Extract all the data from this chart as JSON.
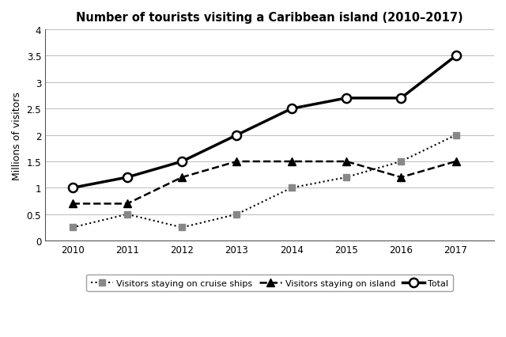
{
  "title": "Number of tourists visiting a Caribbean island (2010–2017)",
  "ylabel": "Millions of visitors",
  "years": [
    2010,
    2011,
    2012,
    2013,
    2014,
    2015,
    2016,
    2017
  ],
  "cruise_ships": [
    0.25,
    0.5,
    0.25,
    0.5,
    1.0,
    1.2,
    1.5,
    2.0
  ],
  "on_island": [
    0.7,
    0.7,
    1.2,
    1.5,
    1.5,
    1.5,
    1.2,
    1.5
  ],
  "total": [
    1.0,
    1.2,
    1.5,
    2.0,
    2.5,
    2.7,
    2.7,
    3.5
  ],
  "ylim": [
    0,
    4
  ],
  "yticks": [
    0,
    0.5,
    1.0,
    1.5,
    2.0,
    2.5,
    3.0,
    3.5,
    4.0
  ],
  "legend_labels": [
    "Visitors staying on cruise ships",
    "Visitors staying on island",
    "Total"
  ],
  "line_color": "black",
  "marker_gray": "#888888",
  "bg_color": "white",
  "title_fontsize": 10.5,
  "label_fontsize": 9,
  "tick_fontsize": 8.5,
  "legend_fontsize": 8
}
